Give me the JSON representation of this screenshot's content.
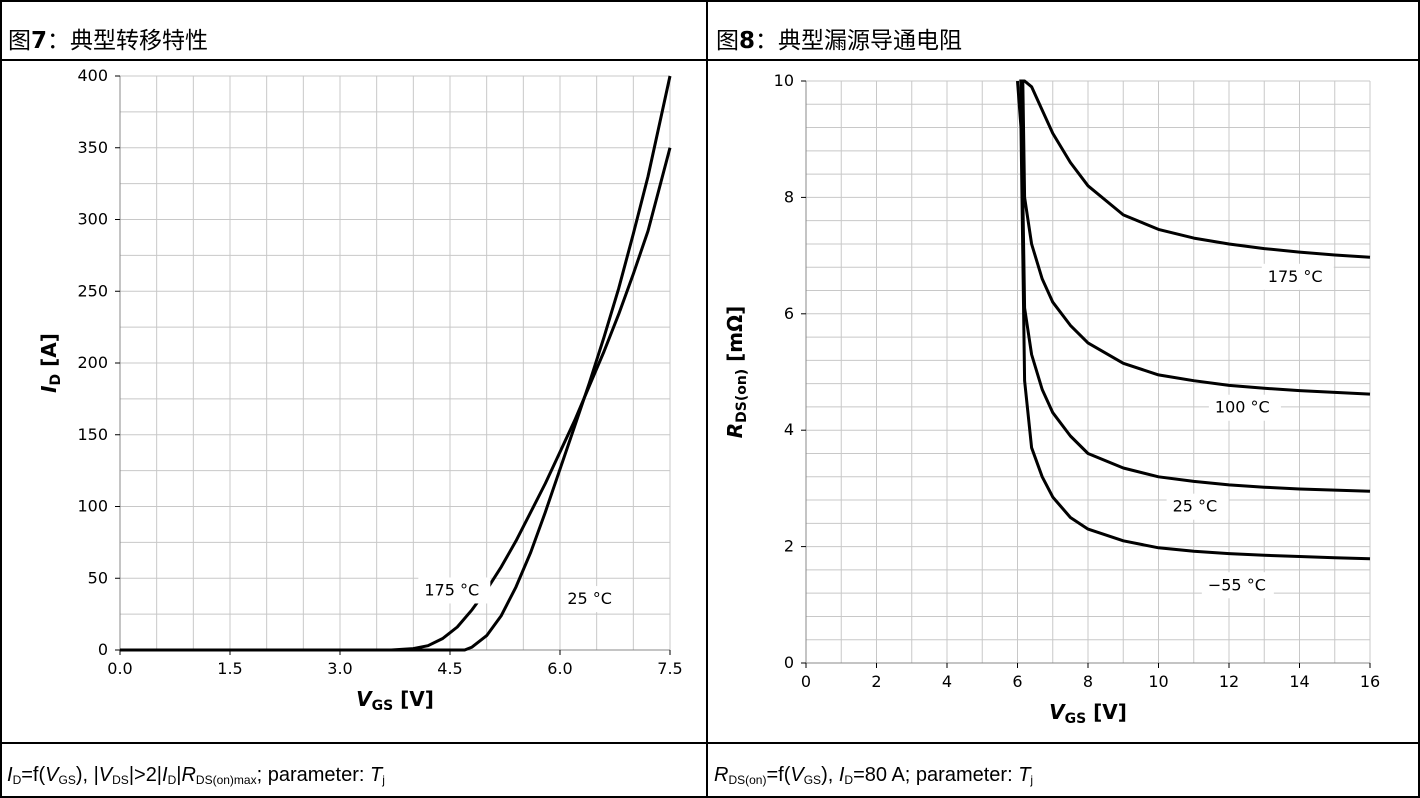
{
  "left_panel": {
    "fig_prefix": "图",
    "fig_number": "7",
    "fig_title": "：典型转移特性",
    "caption": {
      "id_main": "I",
      "id_sub": "D",
      "f_open": "=f(",
      "vgs_main": "V",
      "vgs_sub": "GS",
      "f_close": "), |",
      "vds_main": "V",
      "vds_sub": "DS",
      "gt": "|>2|",
      "id2_main": "I",
      "id2_sub": "D",
      "bar": "|",
      "r_main": "R",
      "r_sub": "DS(on)max",
      "param": "; parameter: ",
      "t_main": "T",
      "t_sub": "j"
    }
  },
  "right_panel": {
    "fig_prefix": "图",
    "fig_number": "8",
    "fig_title": "：典型漏源导通电阻",
    "caption": {
      "r_main": "R",
      "r_sub": "DS(on)",
      "f_open": "=f(",
      "vgs_main": "V",
      "vgs_sub": "GS",
      "f_close": "), ",
      "id_main": "I",
      "id_sub": "D",
      "id_value": "=80 A; parameter: ",
      "t_main": "T",
      "t_sub": "j"
    }
  },
  "colors": {
    "line": "#000000",
    "grid": "#c8c8c8",
    "border": "#000000"
  },
  "chart_data": [
    {
      "type": "line",
      "xlabel_main": "V",
      "xlabel_sub": "GS",
      "xlabel_unit": " [V]",
      "ylabel_main": "I",
      "ylabel_sub": "D",
      "ylabel_unit": " [A]",
      "xlim": [
        0,
        7.5
      ],
      "ylim": [
        0,
        400
      ],
      "xticks": [
        0.0,
        1.5,
        3.0,
        4.5,
        6.0,
        7.5
      ],
      "xtick_labels": [
        "0.0",
        "1.5",
        "3.0",
        "4.5",
        "6.0",
        "7.5"
      ],
      "yticks": [
        0,
        50,
        100,
        150,
        200,
        250,
        300,
        350,
        400
      ],
      "ytick_labels": [
        "0",
        "50",
        "100",
        "150",
        "200",
        "250",
        "300",
        "350",
        "400"
      ],
      "x_minor_step": 0.5,
      "y_minor_step": 25,
      "grid": true,
      "series": [
        {
          "name": "175 °C",
          "x": [
            0,
            3.7,
            4.0,
            4.2,
            4.4,
            4.6,
            4.8,
            5.0,
            5.2,
            5.4,
            5.6,
            5.8,
            6.0,
            6.2,
            6.4,
            6.6,
            6.8,
            7.0,
            7.2,
            7.5
          ],
          "y": [
            0,
            0,
            1,
            3,
            8,
            16,
            28,
            42,
            58,
            76,
            96,
            116,
            138,
            160,
            184,
            208,
            234,
            262,
            292,
            350
          ]
        },
        {
          "name": "25 °C",
          "x": [
            0,
            4.7,
            4.8,
            5.0,
            5.2,
            5.4,
            5.6,
            5.8,
            6.0,
            6.2,
            6.4,
            6.6,
            6.8,
            7.0,
            7.2,
            7.5
          ],
          "y": [
            0,
            0,
            2,
            10,
            24,
            44,
            68,
            96,
            126,
            156,
            186,
            218,
            252,
            290,
            330,
            400
          ]
        }
      ],
      "annotations": [
        {
          "text": "175 °C",
          "x": 4.15,
          "y": 38
        },
        {
          "text": "25 °C",
          "x": 6.1,
          "y": 32
        }
      ]
    },
    {
      "type": "line",
      "xlabel_main": "V",
      "xlabel_sub": "GS",
      "xlabel_unit": " [V]",
      "ylabel_main": "R",
      "ylabel_sub": "DS(on)",
      "ylabel_unit": " [mΩ]",
      "xlim": [
        0,
        16
      ],
      "ylim": [
        0,
        10
      ],
      "xticks": [
        0,
        2,
        4,
        6,
        8,
        10,
        12,
        14,
        16
      ],
      "xtick_labels": [
        "0",
        "2",
        "4",
        "6",
        "8",
        "10",
        "12",
        "14",
        "16"
      ],
      "yticks": [
        0,
        2,
        4,
        6,
        8,
        10
      ],
      "ytick_labels": [
        "0",
        "2",
        "4",
        "6",
        "8",
        "10"
      ],
      "x_minor_step": 1,
      "y_minor_step": 0.4,
      "grid": true,
      "series": [
        {
          "name": "175 °C",
          "x": [
            6.05,
            6.2,
            6.4,
            6.7,
            7.0,
            7.5,
            8.0,
            9.0,
            10.0,
            11.0,
            12.0,
            13.0,
            14.0,
            15.0,
            16.0
          ],
          "y": [
            10,
            10,
            9.9,
            9.5,
            9.1,
            8.6,
            8.2,
            7.7,
            7.45,
            7.3,
            7.2,
            7.12,
            7.06,
            7.01,
            6.97
          ]
        },
        {
          "name": "100 °C",
          "x": [
            6.15,
            6.2,
            6.4,
            6.7,
            7.0,
            7.5,
            8.0,
            9.0,
            10.0,
            11.0,
            12.0,
            13.0,
            14.0,
            15.0,
            16.0
          ],
          "y": [
            10,
            8.0,
            7.2,
            6.6,
            6.2,
            5.8,
            5.5,
            5.15,
            4.95,
            4.85,
            4.77,
            4.72,
            4.68,
            4.65,
            4.62
          ]
        },
        {
          "name": "25 °C",
          "x": [
            6.1,
            6.2,
            6.4,
            6.7,
            7.0,
            7.5,
            8.0,
            9.0,
            10.0,
            11.0,
            12.0,
            13.0,
            14.0,
            15.0,
            16.0
          ],
          "y": [
            10,
            6.1,
            5.3,
            4.7,
            4.3,
            3.9,
            3.6,
            3.35,
            3.2,
            3.12,
            3.06,
            3.02,
            2.99,
            2.97,
            2.95
          ]
        },
        {
          "name": "−55 °C",
          "x": [
            6.0,
            6.1,
            6.2,
            6.4,
            6.7,
            7.0,
            7.5,
            8.0,
            9.0,
            10.0,
            11.0,
            12.0,
            13.0,
            14.0,
            15.0,
            16.0
          ],
          "y": [
            10,
            9.2,
            4.85,
            3.7,
            3.2,
            2.85,
            2.5,
            2.3,
            2.1,
            1.98,
            1.92,
            1.88,
            1.85,
            1.83,
            1.81,
            1.79
          ]
        }
      ],
      "annotations": [
        {
          "text": "175 °C",
          "x": 13.1,
          "y": 6.55
        },
        {
          "text": "100 °C",
          "x": 11.6,
          "y": 4.3
        },
        {
          "text": "25 °C",
          "x": 10.4,
          "y": 2.6
        },
        {
          "text": "−55 °C",
          "x": 11.4,
          "y": 1.25
        }
      ]
    }
  ]
}
